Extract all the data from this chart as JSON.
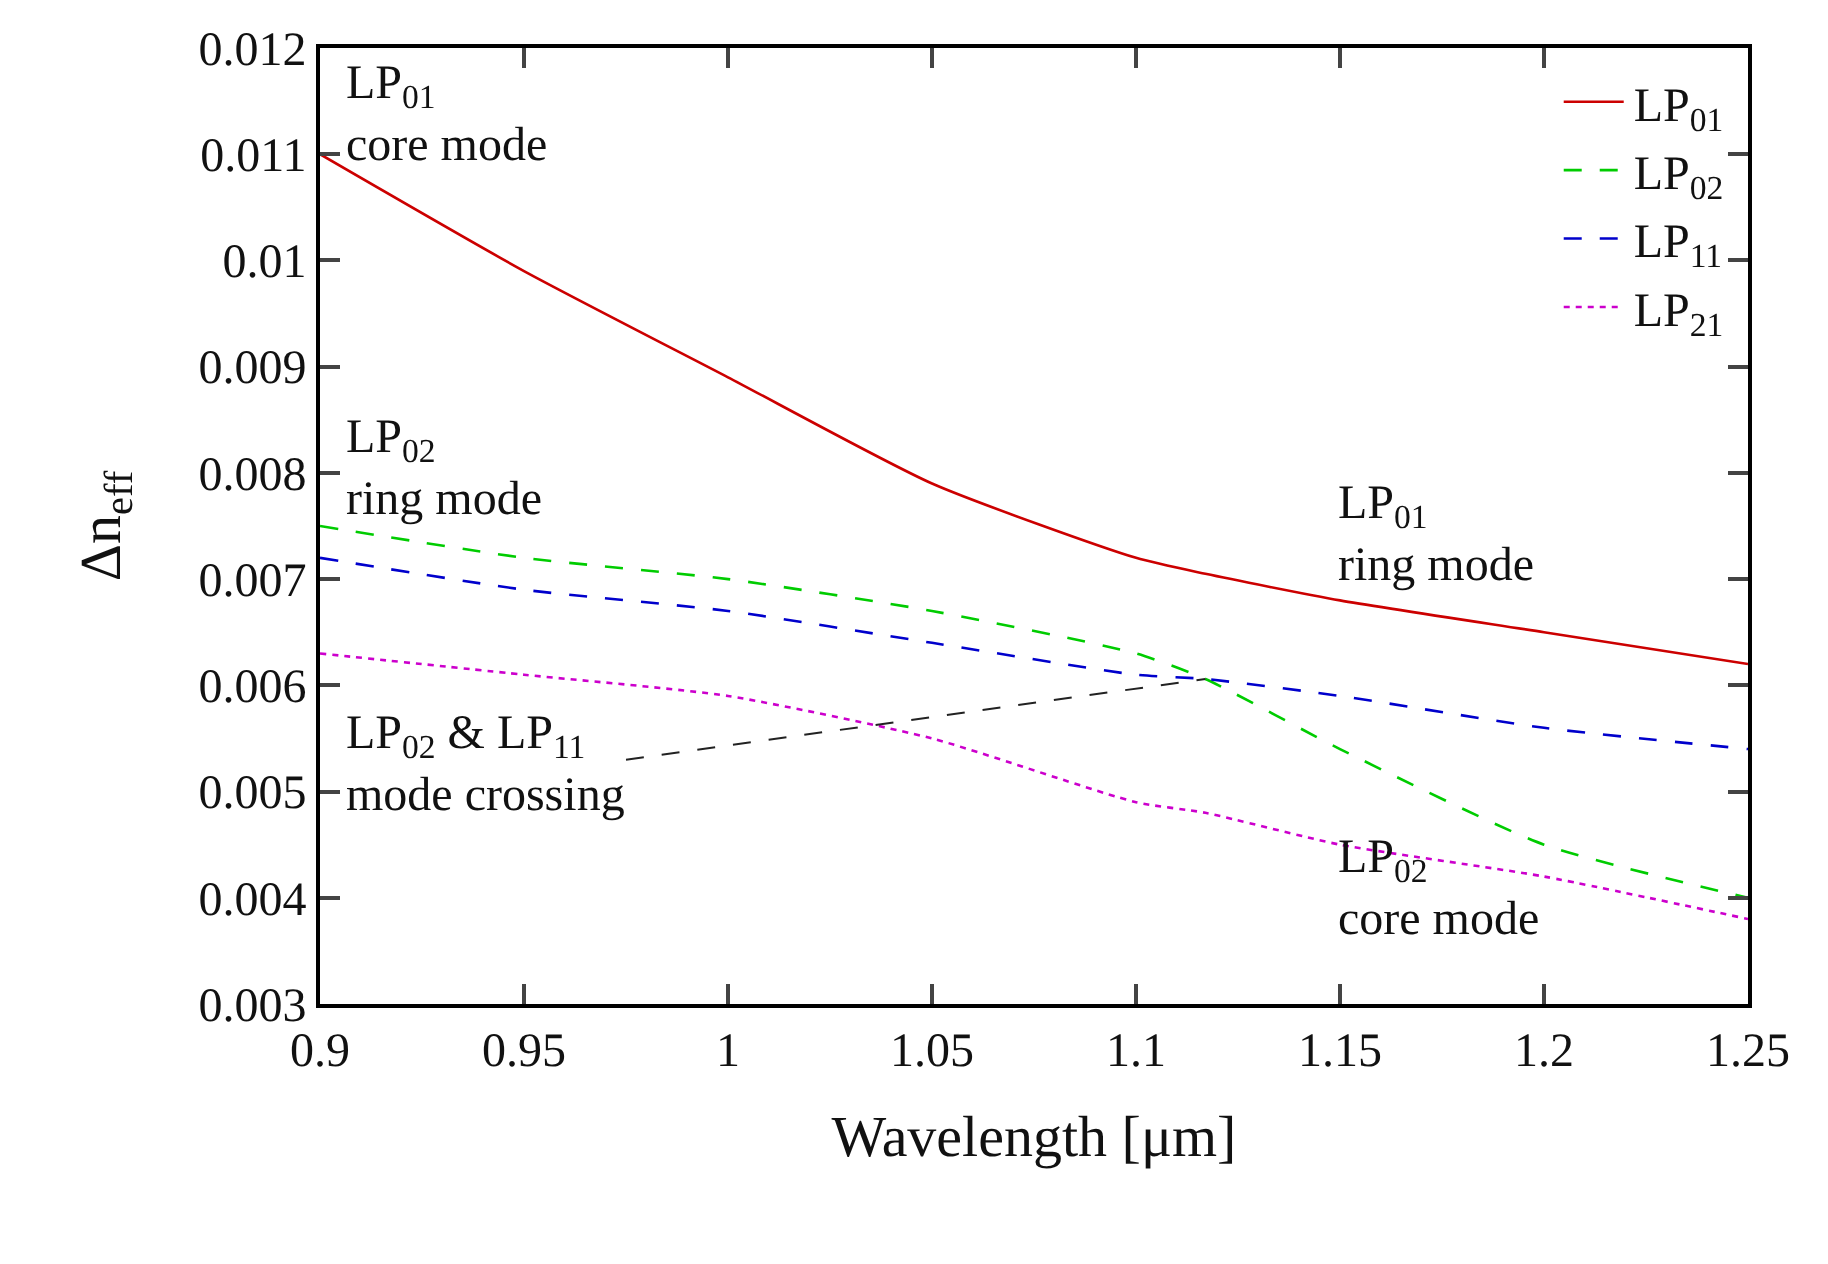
{
  "chart_data": {
    "type": "line",
    "xlabel": "Wavelength [μm]",
    "ylabel": "Δn$_{eff}$",
    "x": [
      0.9,
      0.95,
      1.0,
      1.05,
      1.1,
      1.117,
      1.15,
      1.2,
      1.25
    ],
    "series": [
      {
        "name": "LP$_{01}$",
        "color": "#cc0000",
        "line_style": "solid",
        "values": [
          0.011,
          0.0099,
          0.0089,
          0.0079,
          0.0072,
          0.00705,
          0.0068,
          0.0065,
          0.0062
        ]
      },
      {
        "name": "LP$_{02}$",
        "color": "#00cc00",
        "line_style": "dashed",
        "values": [
          0.0075,
          0.0072,
          0.007,
          0.0067,
          0.0063,
          0.00606,
          0.0054,
          0.0045,
          0.004
        ]
      },
      {
        "name": "LP$_{11}$",
        "color": "#0000cc",
        "line_style": "dashed",
        "values": [
          0.0072,
          0.0069,
          0.0067,
          0.0064,
          0.0061,
          0.00606,
          0.0059,
          0.0056,
          0.0054
        ]
      },
      {
        "name": "LP$_{21}$",
        "color": "#cc00cc",
        "line_style": "dotted",
        "values": [
          0.0063,
          0.0061,
          0.0059,
          0.0055,
          0.0049,
          0.0048,
          0.0045,
          0.0042,
          0.0038
        ]
      }
    ],
    "xlim": [
      0.9,
      1.25
    ],
    "xticks": [
      0.9,
      0.95,
      1,
      1.05,
      1.1,
      1.15,
      1.2,
      1.25
    ],
    "ylim": [
      0.003,
      0.012
    ],
    "yticks": [
      0.003,
      0.004,
      0.005,
      0.006,
      0.007,
      0.008,
      0.009,
      0.01,
      0.011,
      0.012
    ],
    "grid": false,
    "legend": "top right",
    "annotations": [
      "LP$_{01}$\ncore mode",
      "LP$_{02}$\nring mode",
      "LP$_{01}$\nring mode",
      "LP$_{02}$\ncore mode",
      {
        "text": "LP$_{02}$ & LP$_{11}$\nmode crossing",
        "x": 1.117,
        "y": 0.00606
      }
    ]
  }
}
